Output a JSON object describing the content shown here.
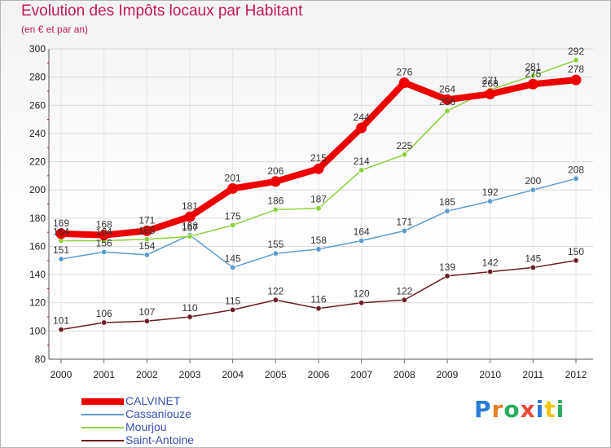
{
  "header": {
    "title": "Evolution des Impôts locaux par Habitant",
    "subtitle": "(en € et par an)"
  },
  "brand": {
    "letters": [
      "P",
      "r",
      "o",
      "x",
      "i",
      "t",
      "i"
    ],
    "colors": [
      "#2b7bd6",
      "#e67e22",
      "#27ae60",
      "#e74c3c",
      "#2b7bd6",
      "#f1c40f",
      "#27ae60"
    ]
  },
  "chart_data": {
    "type": "line",
    "title": "Evolution des Impôts locaux par Habitant",
    "subtitle": "(en € et par an)",
    "xlabel": "",
    "ylabel": "",
    "ylim": [
      80,
      300
    ],
    "yticks": [
      80,
      100,
      120,
      140,
      160,
      180,
      200,
      220,
      240,
      260,
      280,
      300
    ],
    "grid": true,
    "legend_position": "bottom-left",
    "categories": [
      "2000",
      "2001",
      "2002",
      "2003",
      "2004",
      "2005",
      "2006",
      "2007",
      "2008",
      "2009",
      "2010",
      "2011",
      "2012"
    ],
    "series": [
      {
        "name": "Saint-Antoine",
        "color": "#6b1e23",
        "emphasis": false,
        "values": [
          101,
          106,
          107,
          110,
          115,
          122,
          116,
          120,
          122,
          139,
          142,
          145,
          150
        ]
      },
      {
        "name": "Cassaniouze",
        "color": "#5d9bcf",
        "emphasis": false,
        "values": [
          151,
          156,
          154,
          168,
          145,
          155,
          158,
          164,
          171,
          185,
          192,
          200,
          208
        ]
      },
      {
        "name": "Mourjou",
        "color": "#8ed13f",
        "emphasis": false,
        "values": [
          164,
          164,
          165,
          167,
          175,
          186,
          187,
          214,
          225,
          256,
          271,
          281,
          292
        ]
      },
      {
        "name": "CALVINET",
        "color": "#ee0000",
        "emphasis": true,
        "values": [
          169,
          168,
          171,
          181,
          201,
          206,
          215,
          244,
          276,
          264,
          268,
          275,
          278
        ]
      }
    ],
    "legend": [
      "CALVINET",
      "Cassaniouze",
      "Mourjou",
      "Saint-Antoine"
    ]
  }
}
